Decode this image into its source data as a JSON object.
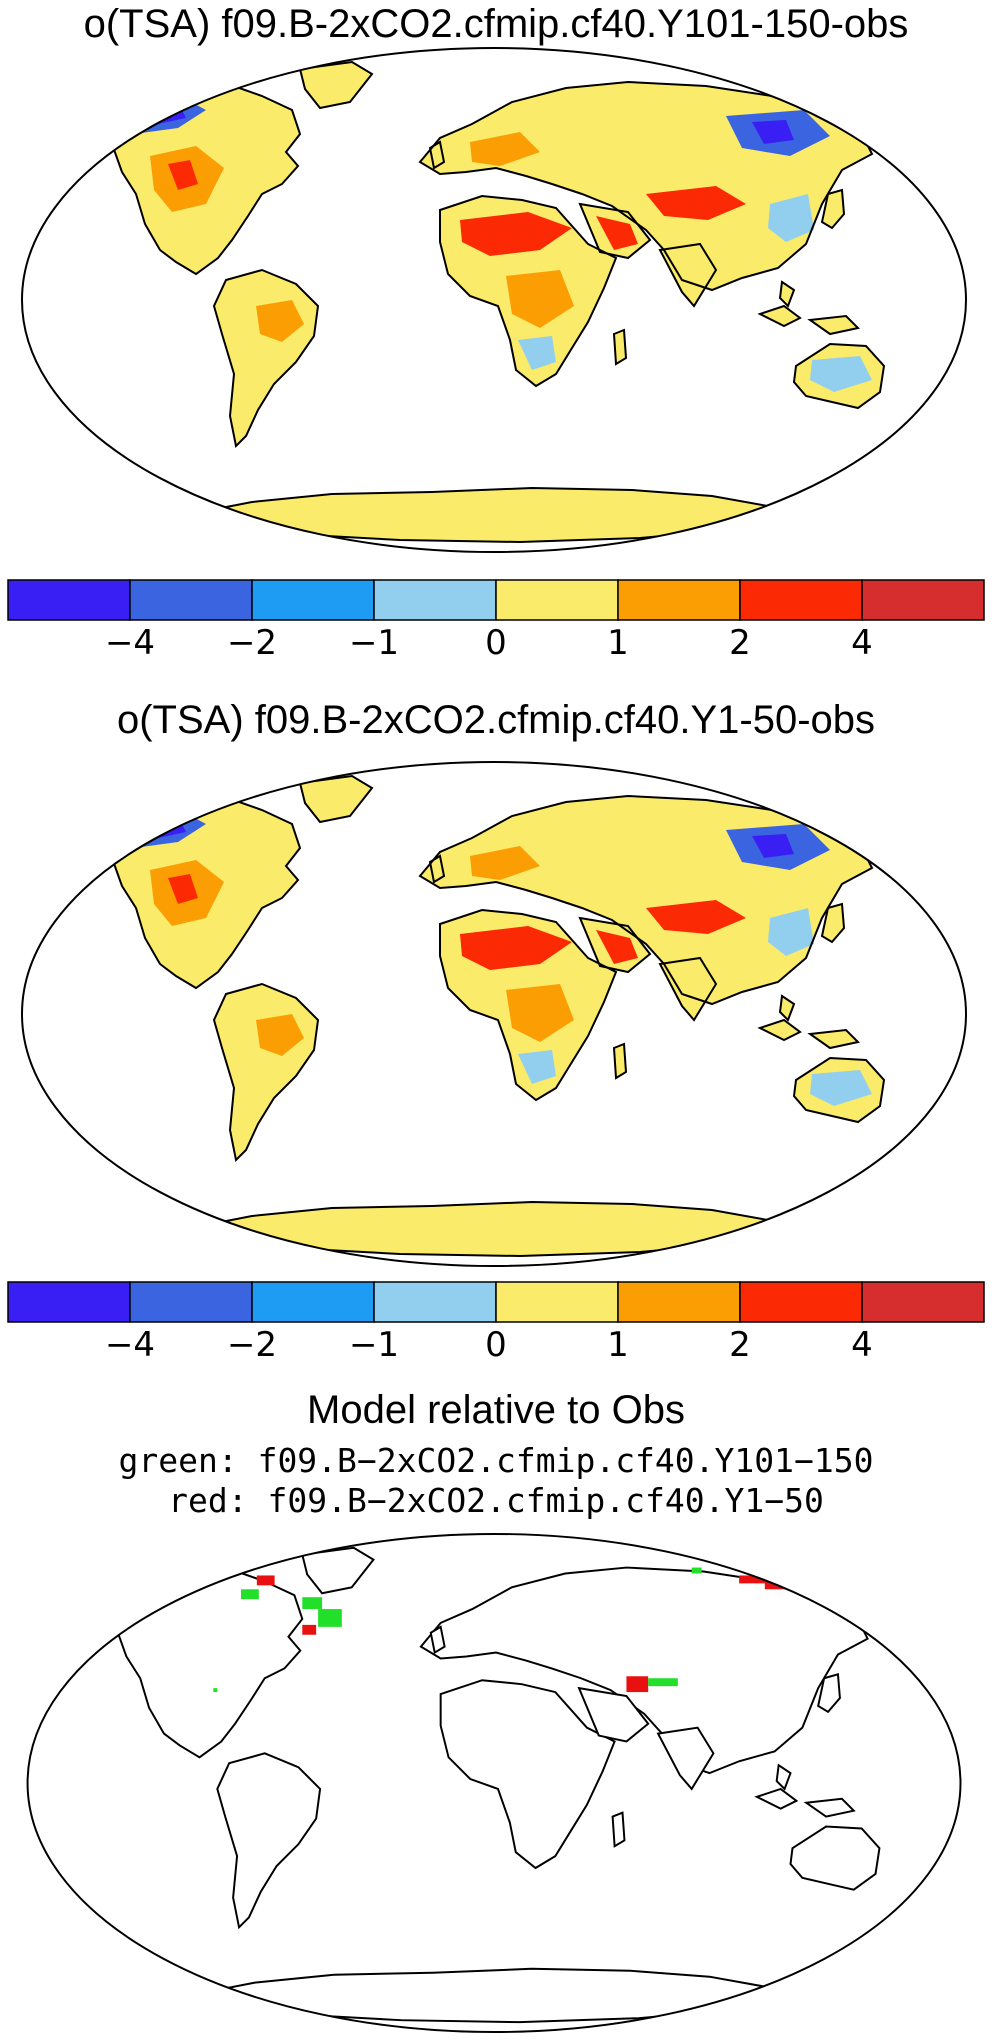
{
  "panels": [
    {
      "title": "o(TSA) f09.B-2xCO2.cfmip.cf40.Y101-150-obs",
      "colorbar": {
        "colors": [
          "#3a1ff5",
          "#3b64e0",
          "#1e9bf2",
          "#92cfef",
          "#fbeb6a",
          "#fb9e04",
          "#fb2a04",
          "#d62d2f"
        ],
        "tick_labels": [
          "−4",
          "−2",
          "−1",
          "0",
          "1",
          "2",
          "4"
        ]
      }
    },
    {
      "title": "o(TSA) f09.B-2xCO2.cfmip.cf40.Y1-50-obs",
      "colorbar": {
        "colors": [
          "#3a1ff5",
          "#3b64e0",
          "#1e9bf2",
          "#92cfef",
          "#fbeb6a",
          "#fb9e04",
          "#fb2a04",
          "#d62d2f"
        ],
        "tick_labels": [
          "−4",
          "−2",
          "−1",
          "0",
          "1",
          "2",
          "4"
        ]
      }
    }
  ],
  "comparison": {
    "title": "Model relative to Obs",
    "green_label": "green: f09.B−2xCO2.cfmip.cf40.Y101−150",
    "red_label": "red: f09.B−2xCO2.cfmip.cf40.Y1−50",
    "colors": {
      "green": "#22e02a",
      "red": "#e81010"
    }
  }
}
